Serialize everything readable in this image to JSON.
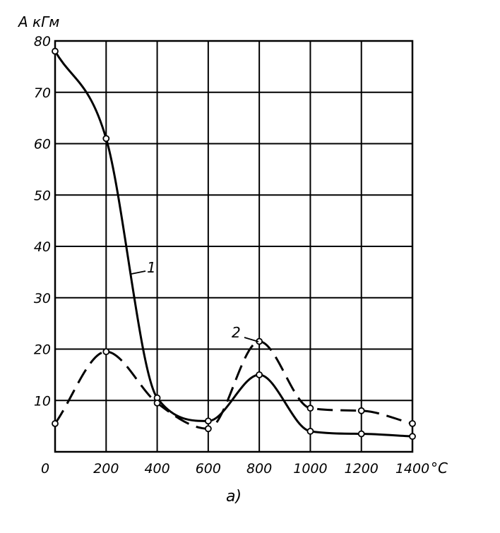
{
  "chart_data": {
    "type": "line",
    "ylabel": "A кГм",
    "xlabel": "°C",
    "caption": "а)",
    "xlim": [
      0,
      1400
    ],
    "ylim": [
      0,
      80
    ],
    "x_ticks": [
      "0",
      "200",
      "400",
      "600",
      "800",
      "1000",
      "1200",
      "1400"
    ],
    "y_ticks": [
      "10",
      "20",
      "30",
      "40",
      "50",
      "60",
      "70",
      "80"
    ],
    "grid": true,
    "series": [
      {
        "name": "1",
        "style": "solid",
        "x": [
          0,
          200,
          400,
          600,
          800,
          1000,
          1200,
          1400
        ],
        "y": [
          78,
          61,
          10.5,
          6,
          15,
          4,
          3.5,
          3
        ]
      },
      {
        "name": "2",
        "style": "dashed",
        "x": [
          0,
          200,
          400,
          600,
          800,
          1000,
          1200,
          1400
        ],
        "y": [
          5.5,
          19.5,
          9.5,
          4.5,
          21.5,
          8.5,
          8,
          5.5
        ]
      }
    ]
  }
}
